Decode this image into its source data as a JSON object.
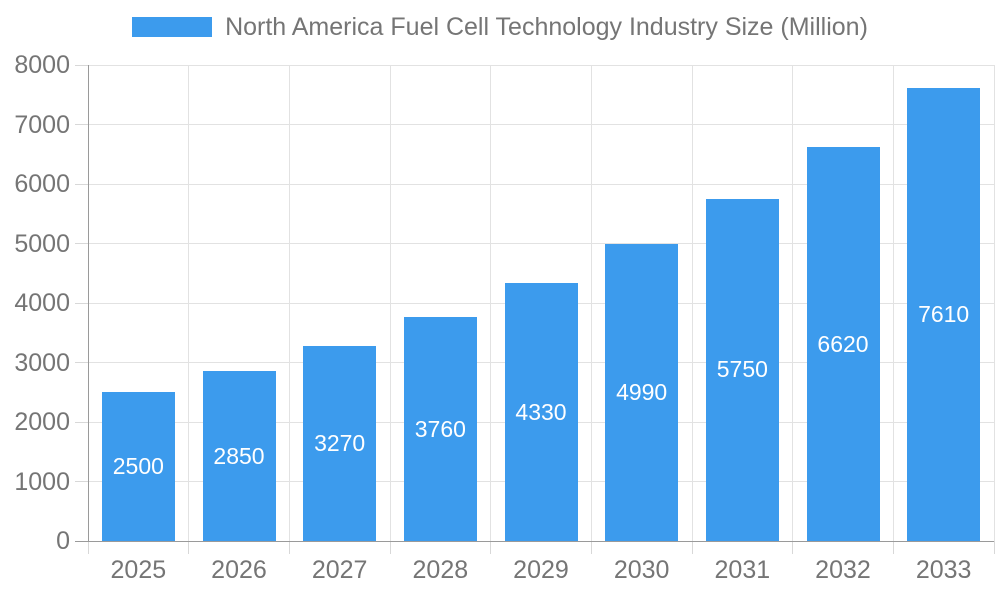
{
  "chart_data": {
    "type": "bar",
    "title": "North America Fuel Cell Technology Industry Size (Million)",
    "categories": [
      "2025",
      "2026",
      "2027",
      "2028",
      "2029",
      "2030",
      "2031",
      "2032",
      "2033"
    ],
    "values": [
      2500,
      2850,
      3270,
      3760,
      4330,
      4990,
      5750,
      6620,
      7610
    ],
    "value_labels": [
      "2500",
      "2850",
      "3270",
      "3760",
      "4330",
      "4990",
      "5750",
      "6620",
      "7610"
    ],
    "yticks": [
      "0",
      "1000",
      "2000",
      "3000",
      "4000",
      "5000",
      "6000",
      "7000",
      "8000"
    ],
    "ylim": [
      0,
      8000
    ],
    "ytick_step": 1000,
    "xlabel": "",
    "ylabel": "",
    "grid": true,
    "legend_position": "top",
    "colors": {
      "bar": "#3C9BED",
      "value_label": "#FFFFFF",
      "axis_label": "#757575",
      "legend_label": "#757575",
      "gridline": "#E2E2E2",
      "tick_mark": "#D8D8D8",
      "axis_border": "#9A9A9A",
      "background": "#FFFFFF"
    }
  }
}
